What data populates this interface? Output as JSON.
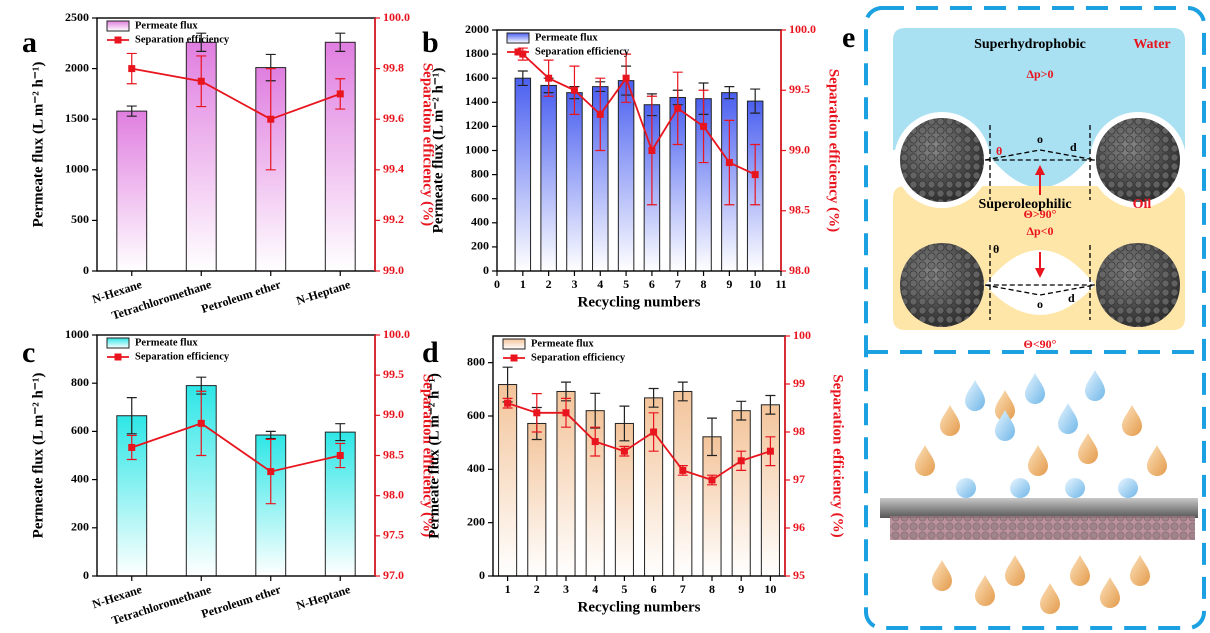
{
  "chart_data": [
    {
      "type": "bar",
      "panel_label": "a",
      "categories": [
        "N-Hexane",
        "Tetrachloromethane",
        "Petroleum ether",
        "N-Heptane"
      ],
      "y_label": "Permeate flux (L m⁻² h⁻¹)",
      "y2_label": "Separation efficiency (%)",
      "ylim": [
        0,
        2500
      ],
      "yticks": [
        0,
        500,
        1000,
        1500,
        2000,
        2500
      ],
      "y2lim": [
        99,
        100
      ],
      "y2ticks": [
        {
          "value": 99,
          "label": "99.0"
        },
        99.2,
        99.4,
        99.6,
        99.8,
        {
          "value": 100,
          "label": "100.0"
        }
      ],
      "legend": "upper left",
      "series": [
        {
          "name": "Permeate flux",
          "type": "bar",
          "color": "#e07ee0",
          "values": [
            1580,
            2260,
            2010,
            2260
          ],
          "errors": [
            50,
            90,
            130,
            90
          ]
        },
        {
          "name": "Separation efficiency",
          "type": "line",
          "axis": "y2",
          "color": "#e8141e",
          "values": [
            99.8,
            99.75,
            99.6,
            99.7
          ],
          "errors": [
            0.06,
            0.1,
            0.2,
            0.06
          ]
        }
      ]
    },
    {
      "type": "bar",
      "panel_label": "b",
      "x": [
        1,
        2,
        3,
        4,
        5,
        6,
        7,
        8,
        9,
        10
      ],
      "xlim": [
        0,
        11
      ],
      "xticks": [
        0,
        1,
        2,
        3,
        4,
        5,
        6,
        7,
        8,
        9,
        10,
        11
      ],
      "x_label": "Recycling numbers",
      "y_label": "Permeate flux (L m⁻² h⁻¹)",
      "y2_label": "Separation efficiency (%)",
      "ylim": [
        0,
        2000
      ],
      "yticks": [
        0,
        200,
        400,
        600,
        800,
        1000,
        1200,
        1400,
        1600,
        1800,
        2000
      ],
      "y2lim": [
        98,
        100
      ],
      "y2ticks": [
        {
          "value": 98,
          "label": "98.0"
        },
        98.5,
        {
          "value": 99,
          "label": "99.0"
        },
        99.5,
        {
          "value": 100,
          "label": "100.0"
        }
      ],
      "legend": "upper left",
      "series": [
        {
          "name": "Permeate flux",
          "type": "bar",
          "color": "#4a5ff0",
          "values": [
            1600,
            1540,
            1480,
            1530,
            1580,
            1380,
            1440,
            1430,
            1480,
            1410
          ],
          "errors": [
            60,
            60,
            50,
            40,
            120,
            90,
            60,
            130,
            50,
            100
          ]
        },
        {
          "name": "Separation efficiency",
          "type": "line",
          "axis": "y2",
          "color": "#e8141e",
          "values": [
            99.8,
            99.6,
            99.5,
            99.3,
            99.6,
            99.0,
            99.35,
            99.2,
            98.9,
            98.8
          ],
          "errors": [
            0.05,
            0.15,
            0.2,
            0.3,
            0.2,
            0.45,
            0.3,
            0.3,
            0.35,
            0.25
          ]
        }
      ]
    },
    {
      "type": "bar",
      "panel_label": "c",
      "categories": [
        "N-Hexane",
        "Tetrachloromethane",
        "Petroleum ether",
        "N-Heptane"
      ],
      "y_label": "Permeate flux (L m⁻² h⁻¹)",
      "y2_label": "Separation efficiency (%)",
      "ylim": [
        0,
        1000
      ],
      "yticks": [
        0,
        200,
        400,
        600,
        800,
        1000
      ],
      "y2lim": [
        97,
        100
      ],
      "y2ticks": [
        {
          "value": 97,
          "label": "97.0"
        },
        97.5,
        {
          "value": 98,
          "label": "98.0"
        },
        98.5,
        {
          "value": 99,
          "label": "99.0"
        },
        99.5,
        {
          "value": 100,
          "label": "100.0"
        }
      ],
      "legend": "upper left",
      "series": [
        {
          "name": "Permeate flux",
          "type": "bar",
          "color": "#2ee6e6",
          "values": [
            665,
            790,
            585,
            597
          ],
          "errors": [
            75,
            35,
            15,
            35
          ]
        },
        {
          "name": "Separation efficiency",
          "type": "line",
          "axis": "y2",
          "color": "#e8141e",
          "values": [
            98.6,
            98.9,
            98.3,
            98.5
          ],
          "errors": [
            0.15,
            0.4,
            0.4,
            0.15
          ]
        }
      ]
    },
    {
      "type": "bar",
      "panel_label": "d",
      "categories": [
        "1",
        "2",
        "3",
        "4",
        "5",
        "6",
        "7",
        "8",
        "9",
        "10"
      ],
      "x_label": "Recycling numbers",
      "y_label": "Permeate flux (L m⁻² h⁻¹)",
      "y2_label": "Separation efficiency (%)",
      "ylim": [
        0,
        900
      ],
      "yticks": [
        0,
        200,
        400,
        600,
        800
      ],
      "y2lim": [
        95,
        100
      ],
      "y2ticks": [
        95,
        96,
        97,
        98,
        99,
        100
      ],
      "legend": "upper left",
      "series": [
        {
          "name": "Permeate flux",
          "type": "bar",
          "color": "#f3c49a",
          "values": [
            718,
            572,
            692,
            620,
            572,
            668,
            692,
            522,
            620,
            642
          ],
          "errors": [
            65,
            60,
            35,
            65,
            65,
            35,
            35,
            70,
            35,
            35
          ]
        },
        {
          "name": "Separation efficiency",
          "type": "line",
          "axis": "y2",
          "color": "#e8141e",
          "values": [
            98.6,
            98.4,
            98.4,
            97.8,
            97.6,
            98.0,
            97.2,
            97.0,
            97.4,
            97.6
          ],
          "errors": [
            0.1,
            0.4,
            0.3,
            0.3,
            0.1,
            0.4,
            0.1,
            0.1,
            0.2,
            0.3
          ]
        }
      ]
    }
  ],
  "panel_e": {
    "label": "e",
    "top": {
      "title": "Superhydrophobic",
      "liquid": "Water",
      "pressure": "Δp>0",
      "theta": "θ",
      "center": "o",
      "distance": "d",
      "angle": "Θ>90°"
    },
    "middle": {
      "title": "Superoleophilic",
      "liquid": "Oil",
      "pressure": "Δp<0",
      "theta": "θ",
      "center": "o",
      "distance": "d",
      "angle": "Θ<90°"
    }
  }
}
